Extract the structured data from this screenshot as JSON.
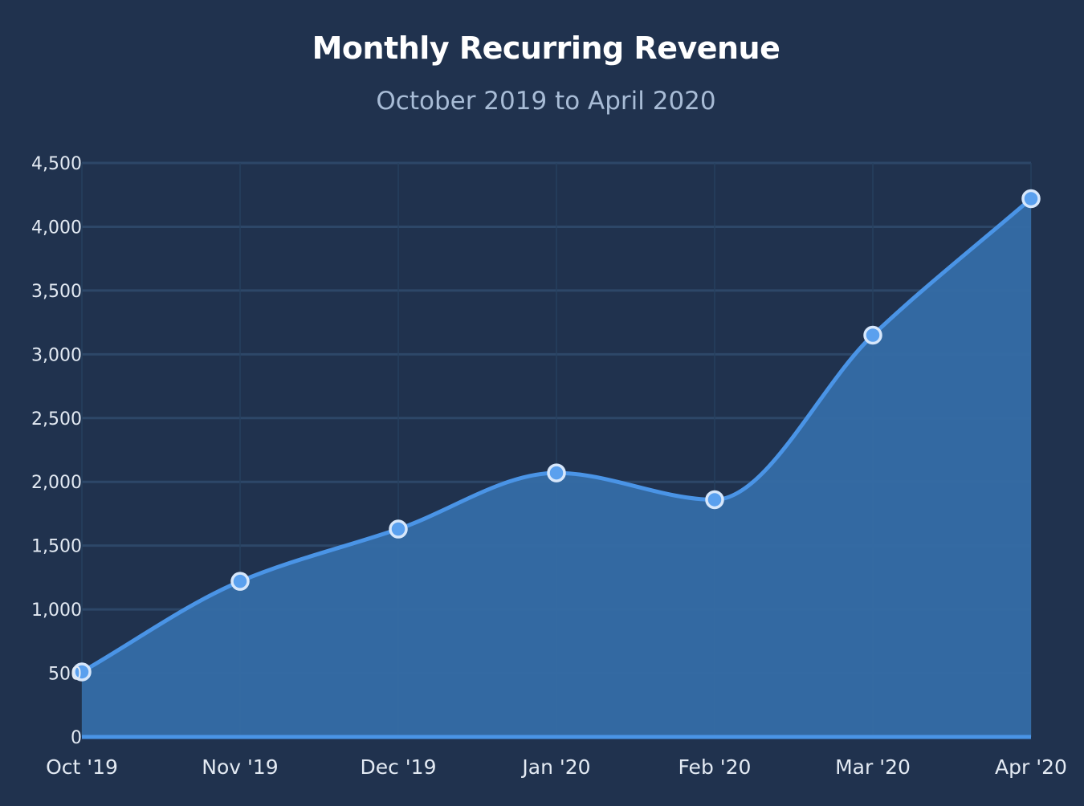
{
  "chart_data": {
    "type": "area",
    "title": "Monthly Recurring Revenue",
    "subtitle": "October 2019 to April 2020",
    "xlabel": "",
    "ylabel": "",
    "categories": [
      "Oct '19",
      "Nov '19",
      "Dec '19",
      "Jan '20",
      "Feb '20",
      "Mar '20",
      "Apr '20"
    ],
    "values": [
      510,
      1220,
      1630,
      2070,
      1860,
      3150,
      4220
    ],
    "ylim": [
      0,
      4500
    ],
    "yticks": [
      0,
      500,
      1000,
      1500,
      2000,
      2500,
      3000,
      3500,
      4000,
      4500
    ],
    "ytick_labels": [
      "0",
      "500",
      "1,000",
      "1,500",
      "2,000",
      "2,500",
      "3,000",
      "3,500",
      "4,000",
      "4,500"
    ],
    "grid": true,
    "curve": "smooth",
    "markers": true,
    "legend": "none",
    "colors": {
      "background": "#20324e",
      "line": "#4a94e6",
      "area": "#356da6",
      "marker_fill": "#5aa0ee",
      "marker_stroke": "#d7e7fb",
      "grid": "#2d4768",
      "baseline": "#4a94e6"
    }
  }
}
